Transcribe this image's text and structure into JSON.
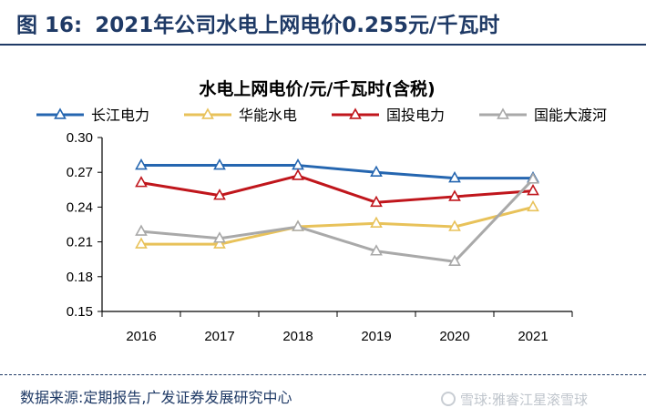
{
  "figure": {
    "label": "图 16:",
    "title": "2021年公司水电上网电价0.255元/千瓦时",
    "source": "数据来源:定期报告,广发证券发展研究中心",
    "watermark": "雪球:雅睿江星滚雪球"
  },
  "chart_data": {
    "type": "line",
    "title": "水电上网电价/元/千瓦时(含税)",
    "xlabel": "",
    "ylabel": "",
    "categories": [
      "2016",
      "2017",
      "2018",
      "2019",
      "2020",
      "2021"
    ],
    "ylim": [
      0.15,
      0.3
    ],
    "yticks": [
      "0.30",
      "0.27",
      "0.24",
      "0.21",
      "0.18",
      "0.15"
    ],
    "grid": false,
    "legend_position": "top",
    "marker": "open-triangle",
    "series": [
      {
        "name": "长江电力",
        "color": "#2566b0",
        "values": [
          0.276,
          0.276,
          0.276,
          0.27,
          0.265,
          0.265
        ]
      },
      {
        "name": "华能水电",
        "color": "#e8c25a",
        "values": [
          0.208,
          0.208,
          0.223,
          0.226,
          0.223,
          0.24
        ]
      },
      {
        "name": "国投电力",
        "color": "#c0161c",
        "values": [
          0.261,
          0.25,
          0.267,
          0.244,
          0.249,
          0.254
        ]
      },
      {
        "name": "国能大渡河",
        "color": "#a9a9a9",
        "values": [
          0.219,
          0.213,
          0.223,
          0.202,
          0.193,
          0.264
        ]
      }
    ]
  }
}
